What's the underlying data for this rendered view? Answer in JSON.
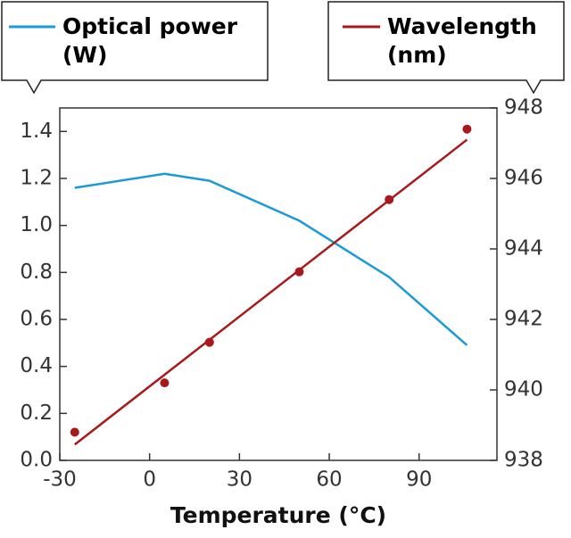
{
  "chart_data": {
    "type": "line",
    "xlabel": "Temperature (°C)",
    "xlim": [
      -30,
      116
    ],
    "xticks": [
      -30,
      0,
      30,
      60,
      90
    ],
    "ylim": [
      0,
      1.5
    ],
    "yticks": [
      {
        "value": 0,
        "label": "0.0"
      },
      0.2,
      0.4,
      0.6,
      0.8,
      {
        "value": 1,
        "label": "1.0"
      },
      1.2,
      1.4
    ],
    "y2lim": [
      938,
      948
    ],
    "y2ticks": [
      938,
      940,
      942,
      944,
      946,
      948
    ],
    "series": [
      {
        "name": "Optical power (W)",
        "color": "#1b9ad7",
        "x": [
          -25,
          5,
          20,
          50,
          80,
          106
        ],
        "values": [
          1.16,
          1.22,
          1.19,
          1.02,
          0.78,
          0.49
        ]
      },
      {
        "name": "Wavelength (nm)",
        "color": "#a8191c",
        "axis": "y2",
        "x": [
          -25,
          106
        ],
        "values": [
          938.45,
          947.1
        ]
      },
      {
        "type": "scatter",
        "color": "#a8191c",
        "axis": "y2",
        "x": [
          -25,
          5,
          20,
          50,
          80,
          106
        ],
        "values": [
          938.8,
          940.2,
          941.35,
          943.35,
          945.4,
          947.4
        ]
      }
    ]
  }
}
